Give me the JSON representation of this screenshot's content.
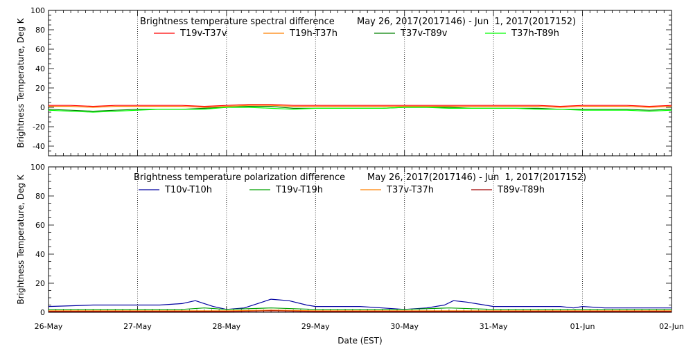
{
  "chart_data": [
    {
      "type": "line",
      "title": "Brightness temperature spectral difference",
      "date_range": "May 26, 2017(2017146) - Jun  1, 2017(2017152)",
      "ylabel": "Brightness Temperature, Deg K",
      "ylim": [
        -50,
        100
      ],
      "yticks": [
        -40,
        -20,
        0,
        20,
        40,
        60,
        80,
        100
      ],
      "xlim": [
        0,
        7
      ],
      "xtick_labels": [
        "26-May",
        "27-May",
        "28-May",
        "29-May",
        "30-May",
        "31-May",
        "01-Jun",
        "02-Jun"
      ],
      "grid": "vertical dotted lines at day boundaries",
      "legend_placement": "top",
      "series": [
        {
          "name": "T19v-T37v",
          "color": "#ff0000",
          "x": [
            0,
            0.25,
            0.5,
            0.75,
            1,
            1.25,
            1.5,
            1.75,
            2,
            2.25,
            2.5,
            2.75,
            3,
            3.25,
            3.5,
            3.75,
            4,
            4.25,
            4.5,
            4.75,
            5,
            5.25,
            5.5,
            5.75,
            6,
            6.25,
            6.5,
            6.75,
            7
          ],
          "values": [
            2,
            2,
            1,
            2,
            2,
            2,
            2,
            1,
            2,
            3,
            3,
            2,
            2,
            2,
            2,
            2,
            2,
            2,
            2,
            2,
            2,
            2,
            2,
            1,
            2,
            2,
            2,
            1,
            2
          ]
        },
        {
          "name": "T19h-T37h",
          "color": "#ff8000",
          "x": [
            0,
            0.25,
            0.5,
            0.75,
            1,
            1.25,
            1.5,
            1.75,
            2,
            2.25,
            2.5,
            2.75,
            3,
            3.25,
            3.5,
            3.75,
            4,
            4.25,
            4.5,
            4.75,
            5,
            5.25,
            5.5,
            5.75,
            6,
            6.25,
            6.5,
            6.75,
            7
          ],
          "values": [
            1,
            1,
            0,
            1,
            1,
            1,
            1,
            0,
            1,
            2,
            2,
            1,
            1,
            1,
            1,
            1,
            1,
            1,
            1,
            1,
            1,
            1,
            1,
            0,
            1,
            1,
            1,
            0,
            1
          ]
        },
        {
          "name": "T37v-T89v",
          "color": "#008000",
          "x": [
            0,
            0.25,
            0.5,
            0.75,
            1,
            1.25,
            1.5,
            1.75,
            2,
            2.25,
            2.5,
            2.75,
            3,
            3.25,
            3.5,
            3.75,
            4,
            4.25,
            4.5,
            4.75,
            5,
            5.25,
            5.5,
            5.75,
            6,
            6.25,
            6.5,
            6.75,
            7
          ],
          "values": [
            -2,
            -3,
            -4,
            -3,
            -2,
            -2,
            -2,
            -1,
            0,
            1,
            1,
            -1,
            -1,
            -1,
            -1,
            -1,
            0,
            0,
            0,
            -1,
            -1,
            -1,
            -1,
            -2,
            -2,
            -2,
            -2,
            -3,
            -2
          ]
        },
        {
          "name": "T37h-T89h",
          "color": "#00ff00",
          "x": [
            0,
            0.25,
            0.5,
            0.75,
            1,
            1.25,
            1.5,
            1.75,
            2,
            2.25,
            2.5,
            2.75,
            3,
            3.25,
            3.5,
            3.75,
            4,
            4.25,
            4.5,
            4.75,
            5,
            5.25,
            5.5,
            5.75,
            6,
            6.25,
            6.5,
            6.75,
            7
          ],
          "values": [
            -3,
            -4,
            -5,
            -4,
            -3,
            -2,
            -2,
            -2,
            0,
            0,
            -1,
            -2,
            -1,
            -1,
            -1,
            -1,
            0,
            0,
            -1,
            -1,
            -1,
            -1,
            -2,
            -2,
            -3,
            -3,
            -3,
            -4,
            -3
          ]
        }
      ]
    },
    {
      "type": "line",
      "title": "Brightness temperature polarization difference",
      "date_range": "May 26, 2017(2017146) - Jun  1, 2017(2017152)",
      "ylabel": "Brightness Temperature, Deg K",
      "xlabel": "Date (EST)",
      "ylim": [
        0,
        100
      ],
      "yticks": [
        0,
        20,
        40,
        60,
        80,
        100
      ],
      "xlim": [
        0,
        7
      ],
      "xtick_labels": [
        "26-May",
        "27-May",
        "28-May",
        "29-May",
        "30-May",
        "31-May",
        "01-Jun",
        "02-Jun"
      ],
      "grid": "vertical dotted lines at day boundaries",
      "legend_placement": "top",
      "series": [
        {
          "name": "T10v-T10h",
          "color": "#0000a0",
          "x": [
            0,
            0.25,
            0.5,
            0.75,
            1,
            1.25,
            1.5,
            1.65,
            1.75,
            1.85,
            2,
            2.2,
            2.35,
            2.5,
            2.7,
            2.9,
            3,
            3.3,
            3.5,
            3.75,
            4,
            4.25,
            4.45,
            4.55,
            4.7,
            4.9,
            5,
            5.25,
            5.5,
            5.75,
            5.9,
            6,
            6.25,
            6.5,
            6.75,
            7
          ],
          "values": [
            4,
            4.5,
            5,
            5,
            5,
            5,
            6,
            8,
            6,
            4,
            2,
            3,
            6,
            9,
            8,
            5,
            4,
            4,
            4,
            3,
            2,
            3,
            5,
            8,
            7,
            5,
            4,
            4,
            4,
            4,
            3,
            4,
            3,
            3,
            3,
            3
          ]
        },
        {
          "name": "T19v-T19h",
          "color": "#00a000",
          "x": [
            0,
            0.5,
            1,
            1.5,
            1.75,
            2,
            2.5,
            3,
            3.5,
            4,
            4.5,
            5,
            5.5,
            6,
            6.5,
            7
          ],
          "values": [
            2,
            2,
            2,
            2,
            3,
            2,
            3,
            2,
            2,
            2,
            3,
            2,
            2,
            2,
            2,
            2
          ]
        },
        {
          "name": "T37v-T37h",
          "color": "#ff8000",
          "x": [
            0,
            0.5,
            1,
            1.5,
            2,
            2.5,
            3,
            3.5,
            4,
            4.5,
            5,
            5.5,
            6,
            6.5,
            7
          ],
          "values": [
            1,
            1,
            1,
            1,
            1,
            1.5,
            1,
            1,
            1,
            1,
            1,
            1,
            1,
            1,
            1
          ]
        },
        {
          "name": "T89v-T89h",
          "color": "#a00000",
          "x": [
            0,
            0.5,
            1,
            1.5,
            2,
            2.5,
            3,
            3.5,
            4,
            4.5,
            5,
            5.5,
            6,
            6.5,
            7
          ],
          "values": [
            0.5,
            0.5,
            0.5,
            0.5,
            0.5,
            1,
            0.5,
            0.5,
            0.5,
            0.5,
            0.5,
            0.5,
            0.5,
            0.5,
            0.5
          ]
        }
      ]
    }
  ]
}
